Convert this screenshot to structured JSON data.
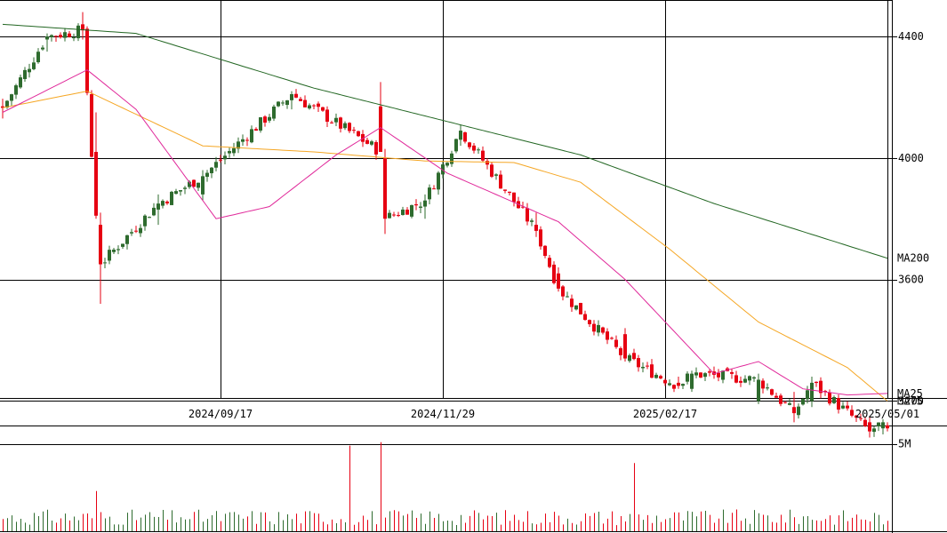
{
  "chart_data": {
    "type": "candlestick",
    "price_axis": {
      "ylim": [
        3210,
        4520
      ],
      "ticks": [
        {
          "value": 4400,
          "label": "4400"
        },
        {
          "value": 4000,
          "label": "4000"
        },
        {
          "value": 3600,
          "label": "3600"
        },
        {
          "value": 3200,
          "label": "3200"
        }
      ]
    },
    "date_ticks": [
      {
        "index": 49,
        "label": "2024/09/17"
      },
      {
        "index": 99,
        "label": "2024/11/29"
      },
      {
        "index": 149,
        "label": "2025/02/17"
      },
      {
        "index": 199,
        "label": "2025/05/01"
      }
    ],
    "ma_labels": {
      "ma200": "MA200",
      "ma75": "MA75",
      "ma25": "MA25"
    },
    "volume_axis": {
      "ylim": [
        0,
        6000000
      ],
      "ticks": [
        {
          "value": 5000000,
          "label": "5M"
        }
      ]
    },
    "colors": {
      "up_candle": "#2e6b2e",
      "down_candle": "#e60012",
      "ma200": "#226622",
      "ma75": "#f5a623",
      "ma25": "#e0299a",
      "grid": "#000000",
      "volume_up": "#2e6b2e",
      "volume_down": "#e60012"
    },
    "key_points": {
      "ohlc": [
        {
          "index": 0,
          "open": 4170,
          "high": 4195,
          "low": 4130,
          "close": 4165
        },
        {
          "index": 10,
          "open": 4390,
          "high": 4410,
          "low": 4350,
          "close": 4400
        },
        {
          "index": 18,
          "open": 4440,
          "high": 4480,
          "low": 4390,
          "close": 4420
        },
        {
          "index": 21,
          "open": 4020,
          "high": 4150,
          "low": 3800,
          "close": 3810
        },
        {
          "index": 22,
          "open": 3780,
          "high": 3820,
          "low": 3520,
          "close": 3650
        },
        {
          "index": 35,
          "open": 3830,
          "high": 3880,
          "low": 3780,
          "close": 3850
        },
        {
          "index": 45,
          "open": 3880,
          "high": 3960,
          "low": 3860,
          "close": 3940
        },
        {
          "index": 65,
          "open": 4190,
          "high": 4220,
          "low": 4160,
          "close": 4210
        },
        {
          "index": 85,
          "open": 4170,
          "high": 4250,
          "low": 4030,
          "close": 4020
        },
        {
          "index": 86,
          "open": 4000,
          "high": 4030,
          "low": 3750,
          "close": 3800
        },
        {
          "index": 95,
          "open": 3840,
          "high": 3880,
          "low": 3800,
          "close": 3860
        },
        {
          "index": 103,
          "open": 4060,
          "high": 4110,
          "low": 4040,
          "close": 4090
        },
        {
          "index": 120,
          "open": 3780,
          "high": 3820,
          "low": 3740,
          "close": 3760
        },
        {
          "index": 125,
          "open": 3620,
          "high": 3640,
          "low": 3560,
          "close": 3570
        },
        {
          "index": 140,
          "open": 3420,
          "high": 3440,
          "low": 3330,
          "close": 3340
        },
        {
          "index": 152,
          "open": 3260,
          "high": 3280,
          "low": 3240,
          "close": 3250
        },
        {
          "index": 155,
          "open": 3240,
          "high": 3300,
          "low": 3230,
          "close": 3290
        },
        {
          "index": 170,
          "open": 3200,
          "high": 3290,
          "low": 3190,
          "close": 3270
        },
        {
          "index": 178,
          "open": 3180,
          "high": 3230,
          "low": 3130,
          "close": 3160
        },
        {
          "index": 182,
          "open": 3200,
          "high": 3280,
          "low": 3180,
          "close": 3260
        },
        {
          "index": 195,
          "open": 3130,
          "high": 3150,
          "low": 3080,
          "close": 3100
        },
        {
          "index": 198,
          "open": 3110,
          "high": 3140,
          "low": 3090,
          "close": 3130
        },
        {
          "index": 199,
          "open": 3120,
          "high": 3130,
          "low": 3100,
          "close": 3110
        }
      ],
      "ma25": [
        {
          "index": 0,
          "value": 4150
        },
        {
          "index": 19,
          "value": 4290
        },
        {
          "index": 30,
          "value": 4160
        },
        {
          "index": 48,
          "value": 3800
        },
        {
          "index": 60,
          "value": 3840
        },
        {
          "index": 75,
          "value": 4010
        },
        {
          "index": 85,
          "value": 4100
        },
        {
          "index": 100,
          "value": 3950
        },
        {
          "index": 125,
          "value": 3790
        },
        {
          "index": 140,
          "value": 3600
        },
        {
          "index": 160,
          "value": 3290
        },
        {
          "index": 170,
          "value": 3330
        },
        {
          "index": 180,
          "value": 3240
        },
        {
          "index": 190,
          "value": 3220
        },
        {
          "index": 199,
          "value": 3225
        }
      ],
      "ma75": [
        {
          "index": 0,
          "value": 4165
        },
        {
          "index": 19,
          "value": 4220
        },
        {
          "index": 45,
          "value": 4040
        },
        {
          "index": 70,
          "value": 4020
        },
        {
          "index": 95,
          "value": 3990
        },
        {
          "index": 115,
          "value": 3985
        },
        {
          "index": 130,
          "value": 3920
        },
        {
          "index": 150,
          "value": 3700
        },
        {
          "index": 170,
          "value": 3460
        },
        {
          "index": 190,
          "value": 3310
        },
        {
          "index": 199,
          "value": 3200
        }
      ],
      "ma200": [
        {
          "index": 0,
          "value": 4440
        },
        {
          "index": 30,
          "value": 4410
        },
        {
          "index": 70,
          "value": 4230
        },
        {
          "index": 100,
          "value": 4120
        },
        {
          "index": 130,
          "value": 4010
        },
        {
          "index": 160,
          "value": 3850
        },
        {
          "index": 199,
          "value": 3670
        }
      ],
      "volume": [
        {
          "index": 0,
          "value": 700000
        },
        {
          "index": 21,
          "value": 2300000
        },
        {
          "index": 40,
          "value": 800000
        },
        {
          "index": 78,
          "value": 4900000
        },
        {
          "index": 85,
          "value": 5100000
        },
        {
          "index": 142,
          "value": 3900000
        },
        {
          "index": 199,
          "value": 600000
        }
      ]
    }
  }
}
